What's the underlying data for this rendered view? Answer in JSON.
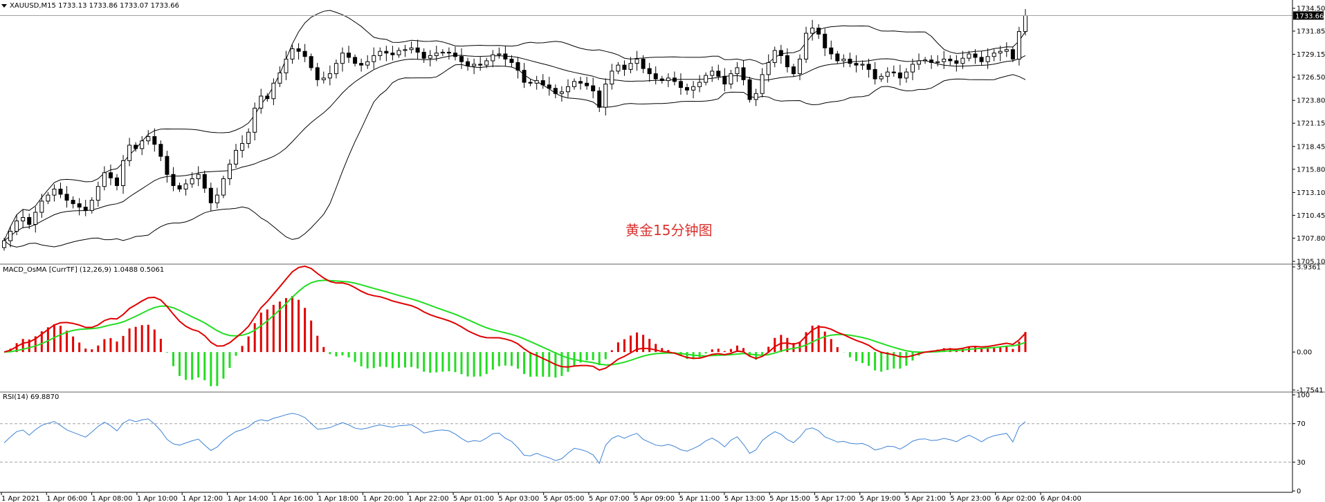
{
  "header": {
    "main": "XAUUSD,M15  1733.13 1733.86 1733.07 1733.66",
    "macd": "MACD_OsMA [CurrTF] (12,26,9) 1.0488 0.5061",
    "rsi": "RSI(14) 69.8870"
  },
  "annotation": "黄金15分钟图",
  "icons": {
    "collapse": "triangle-down-icon"
  },
  "colors": {
    "candle": "#000000",
    "bollinger": "#000000",
    "macd_line": "#e00000",
    "signal_line": "#22dd22",
    "hist_pos": "#e00000",
    "hist_neg": "#22dd22",
    "rsi_line": "#3d82d6",
    "separator": "#808080",
    "current_price_bg": "#000000"
  },
  "chart_data": [
    {
      "type": "candlestick",
      "symbol": "XAUUSD",
      "timeframe": "M15",
      "ylim": [
        1705.1,
        1734.5
      ],
      "y_ticks": [
        "1734.50",
        "1731.85",
        "1729.15",
        "1726.50",
        "1723.80",
        "1721.15",
        "1718.45",
        "1715.80",
        "1713.10",
        "1710.45",
        "1707.80",
        "1705.10"
      ],
      "current_price": "1733.66",
      "x_ticks": [
        "1 Apr 2021",
        "1 Apr 06:00",
        "1 Apr 08:00",
        "1 Apr 10:00",
        "1 Apr 12:00",
        "1 Apr 14:00",
        "1 Apr 16:00",
        "1 Apr 18:00",
        "1 Apr 20:00",
        "1 Apr 22:00",
        "5 Apr 01:00",
        "5 Apr 03:00",
        "5 Apr 05:00",
        "5 Apr 07:00",
        "5 Apr 09:00",
        "5 Apr 11:00",
        "5 Apr 13:00",
        "5 Apr 15:00",
        "5 Apr 17:00",
        "5 Apr 19:00",
        "5 Apr 21:00",
        "5 Apr 23:00",
        "6 Apr 02:00",
        "6 Apr 04:00"
      ],
      "close": [
        1707.5,
        1708.6,
        1709.8,
        1710.2,
        1709.4,
        1710.8,
        1712.1,
        1712.8,
        1713.5,
        1712.9,
        1712.2,
        1711.8,
        1711.4,
        1711.0,
        1712.2,
        1713.8,
        1715.4,
        1714.8,
        1713.9,
        1716.8,
        1718.6,
        1718.2,
        1719.1,
        1719.6,
        1718.7,
        1717.3,
        1715.2,
        1713.9,
        1713.5,
        1714.1,
        1714.7,
        1715.2,
        1713.6,
        1711.9,
        1712.8,
        1714.7,
        1716.4,
        1718.0,
        1718.8,
        1720.1,
        1722.9,
        1724.3,
        1724.0,
        1725.8,
        1727.0,
        1728.6,
        1729.8,
        1729.5,
        1728.9,
        1727.6,
        1726.2,
        1726.4,
        1726.9,
        1728.1,
        1729.3,
        1728.8,
        1728.1,
        1727.9,
        1728.3,
        1729.0,
        1729.5,
        1729.3,
        1729.1,
        1729.6,
        1729.7,
        1729.9,
        1729.4,
        1728.7,
        1729.0,
        1729.3,
        1729.4,
        1729.3,
        1728.9,
        1728.3,
        1727.8,
        1728.0,
        1727.9,
        1728.4,
        1729.1,
        1729.2,
        1728.6,
        1728.2,
        1727.3,
        1725.9,
        1725.8,
        1726.1,
        1725.6,
        1725.2,
        1724.6,
        1724.8,
        1725.4,
        1726.0,
        1725.8,
        1725.5,
        1724.9,
        1723.0,
        1725.7,
        1727.2,
        1727.9,
        1727.4,
        1728.1,
        1728.6,
        1727.5,
        1726.9,
        1726.3,
        1726.1,
        1726.4,
        1726.0,
        1725.3,
        1725.0,
        1725.4,
        1725.9,
        1726.7,
        1727.2,
        1726.6,
        1725.7,
        1726.9,
        1727.6,
        1726.2,
        1723.9,
        1724.6,
        1726.8,
        1728.2,
        1729.6,
        1729.0,
        1727.7,
        1726.9,
        1728.6,
        1731.6,
        1732.2,
        1731.5,
        1729.9,
        1729.2,
        1728.4,
        1728.6,
        1728.1,
        1727.9,
        1728.0,
        1727.4,
        1726.3,
        1726.6,
        1727.1,
        1727.0,
        1726.4,
        1727.1,
        1728.0,
        1728.4,
        1728.5,
        1728.2,
        1728.3,
        1728.6,
        1728.4,
        1728.1,
        1728.7,
        1729.2,
        1728.8,
        1728.3,
        1728.9,
        1729.3,
        1729.5,
        1729.7,
        1728.6,
        1731.8,
        1733.66
      ]
    },
    {
      "type": "line",
      "name": "MACD_OsMA",
      "ylim": [
        -1.7541,
        3.9361
      ],
      "y_ticks": [
        "3.9361",
        "0.00",
        "-1.7541"
      ]
    },
    {
      "type": "line",
      "name": "RSI(14)",
      "ylim": [
        0,
        100
      ],
      "y_ticks": [
        "100",
        "70",
        "30",
        "0"
      ],
      "levels": [
        70,
        30
      ]
    }
  ]
}
